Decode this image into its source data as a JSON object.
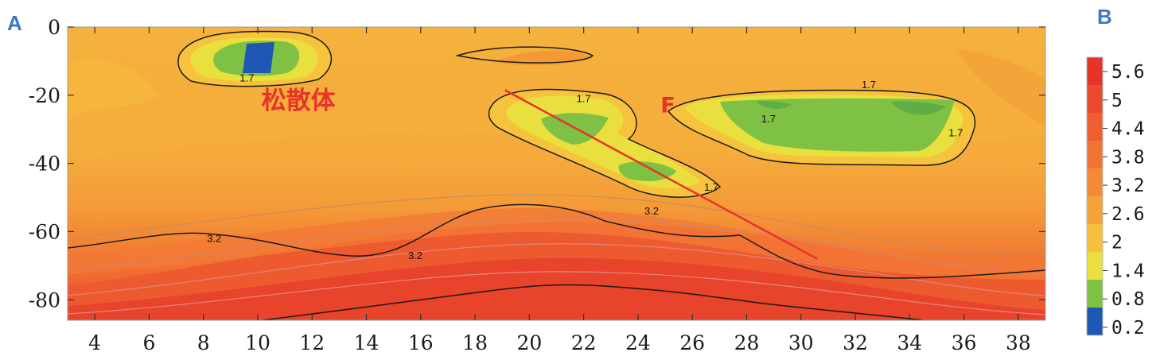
{
  "chart_data": {
    "type": "heatmap",
    "x_ticks": [
      4,
      6,
      8,
      10,
      12,
      14,
      16,
      18,
      20,
      22,
      24,
      26,
      28,
      30,
      32,
      34,
      36,
      38
    ],
    "y_ticks": [
      0,
      -20,
      -40,
      -60,
      -80
    ],
    "xlim": [
      3,
      39
    ],
    "ylim": [
      -86,
      0
    ],
    "grid": false,
    "colorbar": {
      "labels": [
        "5.6",
        "5",
        "4.4",
        "3.8",
        "3.2",
        "2.6",
        "2",
        "1.4",
        "0.8",
        "0.2"
      ],
      "colors": [
        "#e8332a",
        "#ec4a2d",
        "#ee5f30",
        "#f17434",
        "#f38a37",
        "#f5a23b",
        "#f7c03c",
        "#e9e040",
        "#7ec144",
        "#1f57b5"
      ],
      "placement": "right"
    },
    "contour_labels": [
      {
        "text": "1.7",
        "x": 9.6,
        "y": -16
      },
      {
        "text": "1.7",
        "x": 22,
        "y": -22
      },
      {
        "text": "1.7",
        "x": 32.5,
        "y": -18
      },
      {
        "text": "1.7",
        "x": 28.8,
        "y": -28
      },
      {
        "text": "1.7",
        "x": 35.7,
        "y": -32
      },
      {
        "text": "1.7",
        "x": 26.7,
        "y": -48
      },
      {
        "text": "3.2",
        "x": 8.4,
        "y": -63
      },
      {
        "text": "3.2",
        "x": 15.8,
        "y": -68
      },
      {
        "text": "3.2",
        "x": 24.5,
        "y": -55
      }
    ],
    "annotations": [
      {
        "text": "松散体",
        "x": 11.5,
        "y": -24
      },
      {
        "text": "F",
        "x": 25.1,
        "y": -25
      }
    ],
    "fault_line": [
      [
        19.1,
        -18.5
      ],
      [
        30.6,
        -68
      ]
    ]
  },
  "labels": {
    "corner_a": "A",
    "corner_b": "B"
  }
}
